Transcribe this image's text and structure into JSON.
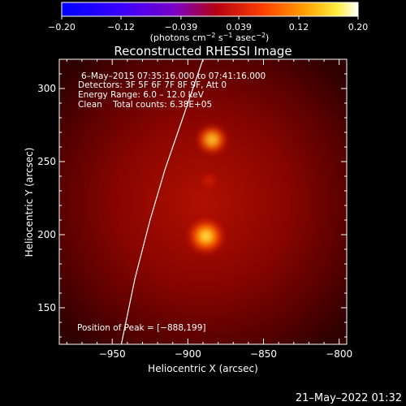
{
  "chart_data": {
    "type": "heatmap",
    "title": "Reconstructed RHESSI Image",
    "xlabel": "Heliocentric X (arcsec)",
    "ylabel": "Heliocentric Y (arcsec)",
    "xlim": [
      -985,
      -795
    ],
    "ylim": [
      125,
      320
    ],
    "x_ticks": [
      -950,
      -900,
      -850,
      -800
    ],
    "x_tick_labels": [
      "−950",
      "−900",
      "−850",
      "−800"
    ],
    "y_ticks": [
      150,
      200,
      250,
      300
    ],
    "y_tick_labels": [
      "150",
      "200",
      "250",
      "300"
    ],
    "colorbar": {
      "range": [
        -0.2,
        0.2
      ],
      "ticks": [
        -0.2,
        -0.12,
        -0.039,
        0.039,
        0.12,
        0.2
      ],
      "tick_labels": [
        "−0.20",
        "−0.12",
        "−0.039",
        "0.039",
        "0.12",
        "0.20"
      ],
      "unit_prefix": "(photons cm",
      "unit_sup1": "−2",
      "unit_mid": " s",
      "unit_sup2": "−1",
      "unit_mid2": " asec",
      "unit_sup3": "−2",
      "unit_suffix": ")",
      "colormap": "RHESSI color table"
    },
    "annotations": [
      "6–May–2015 07:35:16.000 to 07:41:16.000",
      "Detectors: 3F 5F 6F 7F 8F 9F, Att 0",
      "Energy Range: 6.0 – 12.0 keV",
      "Clean    Total counts: 6.38E+05"
    ],
    "peak_label": "Position of Peak = [−888,199]",
    "sources": [
      {
        "x": -888,
        "y": 199,
        "intensity": 1.0
      },
      {
        "x": -884,
        "y": 265,
        "intensity": 0.82
      },
      {
        "x": -886,
        "y": 237,
        "intensity": 0.45
      }
    ],
    "limb_curve": [
      [
        -944,
        125
      ],
      [
        -935,
        170
      ],
      [
        -925,
        210
      ],
      [
        -915,
        245
      ],
      [
        -905,
        275
      ],
      [
        -895,
        305
      ],
      [
        -890,
        320
      ]
    ]
  },
  "footer": {
    "timestamp": "21–May–2022 01:32"
  }
}
